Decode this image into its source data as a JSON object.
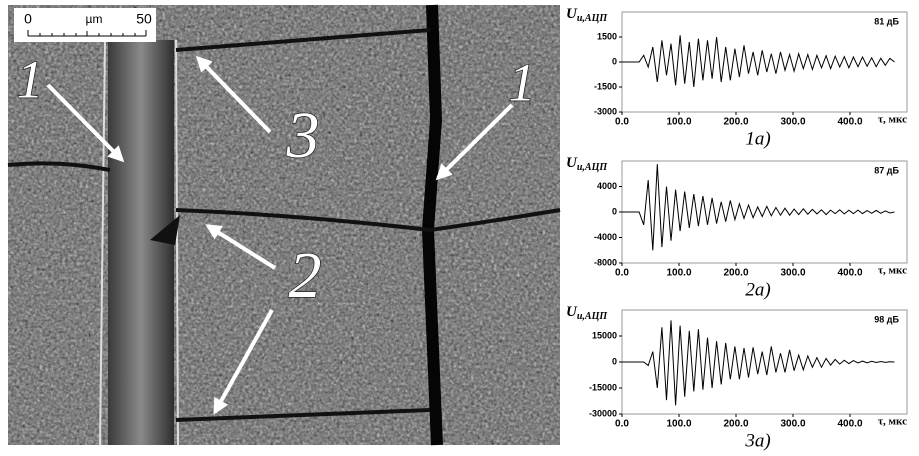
{
  "micrograph": {
    "scale_bar": {
      "start": "0",
      "unit": "µm",
      "end": "50"
    },
    "labels": [
      "1",
      "1",
      "3",
      "2"
    ]
  },
  "chart_data": [
    {
      "type": "line",
      "annotation": "81 дБ",
      "caption": "1а)",
      "ylabel": {
        "main": "U",
        "sub": "и,АЦП"
      },
      "xlabel": "τ, мкс",
      "x": [
        0,
        30,
        38,
        46,
        54,
        62,
        70,
        78,
        86,
        94,
        102,
        110,
        118,
        126,
        134,
        142,
        150,
        158,
        166,
        174,
        182,
        190,
        198,
        206,
        214,
        222,
        230,
        238,
        246,
        254,
        262,
        270,
        278,
        286,
        294,
        302,
        310,
        318,
        326,
        334,
        342,
        350,
        358,
        366,
        374,
        382,
        390,
        398,
        406,
        414,
        422,
        430,
        438,
        446,
        454,
        462,
        470,
        478
      ],
      "series": [
        {
          "color": "#000000",
          "values": [
            0,
            0,
            400,
            -300,
            900,
            -1200,
            1300,
            -800,
            1100,
            -1400,
            1600,
            -1300,
            1200,
            -1500,
            1400,
            -1100,
            1300,
            -1000,
            1500,
            -1200,
            900,
            -1100,
            800,
            -900,
            1000,
            -700,
            600,
            -800,
            700,
            -600,
            500,
            -700,
            600,
            -500,
            450,
            -550,
            500,
            -400,
            450,
            -450,
            400,
            -350,
            380,
            -400,
            350,
            -300,
            320,
            -350,
            300,
            -280,
            300,
            -260,
            250,
            -280,
            230,
            -200,
            220,
            0
          ]
        }
      ],
      "xlim": [
        0,
        500
      ],
      "ylim": [
        -3000,
        3000
      ],
      "xticks": [
        {
          "value": 0,
          "label": "0.0"
        },
        {
          "value": 100,
          "label": "100.0"
        },
        {
          "value": 200,
          "label": "200.0"
        },
        {
          "value": 300,
          "label": "300.0"
        },
        {
          "value": 400,
          "label": "400.0"
        }
      ],
      "yticks": [
        1500,
        0,
        -1500,
        -3000
      ]
    },
    {
      "type": "line",
      "annotation": "87 дБ",
      "caption": "2а)",
      "ylabel": {
        "main": "U",
        "sub": "и,АЦП"
      },
      "xlabel": "τ, мкс",
      "x": [
        0,
        30,
        38,
        46,
        54,
        62,
        70,
        78,
        86,
        94,
        102,
        110,
        118,
        126,
        134,
        142,
        150,
        158,
        166,
        174,
        182,
        190,
        198,
        206,
        214,
        222,
        230,
        238,
        246,
        254,
        262,
        270,
        278,
        286,
        294,
        302,
        310,
        318,
        326,
        334,
        342,
        350,
        358,
        366,
        374,
        382,
        390,
        398,
        406,
        414,
        422,
        430,
        438,
        446,
        454,
        462,
        470,
        478
      ],
      "series": [
        {
          "color": "#000000",
          "values": [
            0,
            0,
            -2000,
            5000,
            -6000,
            7500,
            -5500,
            4000,
            -4500,
            3500,
            -3000,
            3200,
            -2500,
            2800,
            -2200,
            2500,
            -2000,
            2200,
            -1800,
            1600,
            -1500,
            1800,
            -1200,
            1300,
            -1000,
            1100,
            -900,
            800,
            -700,
            900,
            -600,
            700,
            -500,
            600,
            -500,
            450,
            -400,
            500,
            -350,
            400,
            -300,
            350,
            -400,
            300,
            -250,
            350,
            -300,
            280,
            -250,
            300,
            -250,
            220,
            -200,
            250,
            -200,
            180,
            -150,
            0
          ]
        }
      ],
      "xlim": [
        0,
        500
      ],
      "ylim": [
        -8000,
        8000
      ],
      "xticks": [
        {
          "value": 0,
          "label": "0.0"
        },
        {
          "value": 100,
          "label": "100.0"
        },
        {
          "value": 200,
          "label": "200.0"
        },
        {
          "value": 300,
          "label": "300.0"
        },
        {
          "value": 400,
          "label": "400.0"
        }
      ],
      "yticks": [
        4000,
        0,
        -4000,
        -8000
      ]
    },
    {
      "type": "line",
      "annotation": "98 дБ",
      "caption": "3а)",
      "ylabel": {
        "main": "U",
        "sub": "и,АЦП"
      },
      "xlabel": "τ, мкс",
      "x": [
        0,
        30,
        38,
        46,
        54,
        62,
        70,
        78,
        86,
        94,
        102,
        110,
        118,
        126,
        134,
        142,
        150,
        158,
        166,
        174,
        182,
        190,
        198,
        206,
        214,
        222,
        230,
        238,
        246,
        254,
        262,
        270,
        278,
        286,
        294,
        302,
        310,
        318,
        326,
        334,
        342,
        350,
        358,
        366,
        374,
        382,
        390,
        398,
        406,
        414,
        422,
        430,
        438,
        446,
        454,
        462,
        470,
        478
      ],
      "series": [
        {
          "color": "#000000",
          "values": [
            0,
            0,
            0,
            -2000,
            6000,
            -15000,
            20000,
            -22000,
            24000,
            -25000,
            21000,
            -20000,
            18000,
            -17000,
            19000,
            -16000,
            14000,
            -15000,
            12000,
            -13000,
            11000,
            -10000,
            9000,
            -10000,
            8000,
            -9000,
            8500,
            -7000,
            6000,
            -7500,
            9000,
            -6000,
            5000,
            -6000,
            7000,
            -5000,
            4000,
            -4500,
            3500,
            -3000,
            2500,
            -3000,
            2000,
            -1800,
            1500,
            -1200,
            1000,
            -900,
            800,
            -600,
            500,
            -500,
            400,
            -300,
            300,
            -250,
            200,
            0
          ]
        }
      ],
      "xlim": [
        0,
        500
      ],
      "ylim": [
        -30000,
        30000
      ],
      "xticks": [
        {
          "value": 0,
          "label": "0.0"
        },
        {
          "value": 100,
          "label": "100.0"
        },
        {
          "value": 200,
          "label": "200.0"
        },
        {
          "value": 300,
          "label": "300.0"
        },
        {
          "value": 400,
          "label": "400.0"
        }
      ],
      "yticks": [
        15000,
        0,
        -15000,
        -30000
      ]
    }
  ]
}
